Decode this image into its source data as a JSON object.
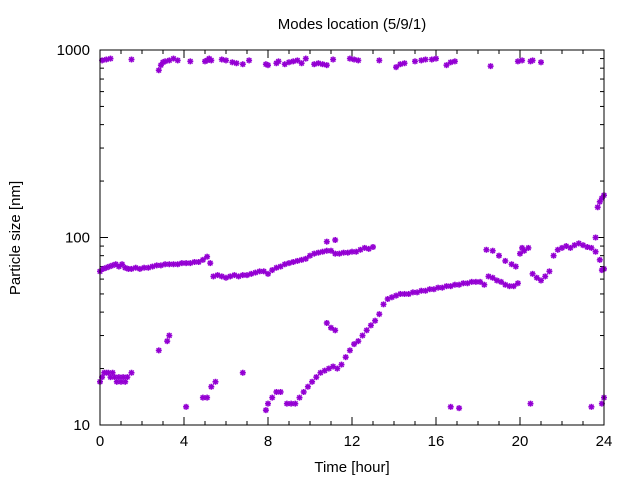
{
  "chart_data": {
    "type": "scatter",
    "title": "Modes location (5/9/1)",
    "xlabel": "Time [hour]",
    "ylabel": "Particle size [nm]",
    "xlim": [
      0,
      24
    ],
    "ylim": [
      10,
      1000
    ],
    "yscale": "log",
    "grid": false,
    "legend": "none",
    "marker_color": "#9400d3",
    "marker": "asterisk",
    "x_ticks": [
      0,
      4,
      8,
      12,
      16,
      20,
      24
    ],
    "x_tick_labels": [
      "0",
      "4",
      "8",
      "12",
      "16",
      "20",
      "24"
    ],
    "y_ticks": [
      10,
      100,
      1000
    ],
    "y_tick_labels": [
      "10",
      "100",
      "1000"
    ],
    "series": [
      {
        "name": "",
        "points": [
          [
            0.1,
            880
          ],
          [
            0.3,
            890
          ],
          [
            0.5,
            900
          ],
          [
            1.5,
            890
          ],
          [
            2.8,
            780
          ],
          [
            2.9,
            830
          ],
          [
            3.0,
            860
          ],
          [
            3.1,
            870
          ],
          [
            3.3,
            880
          ],
          [
            3.5,
            900
          ],
          [
            3.7,
            880
          ],
          [
            4.3,
            870
          ],
          [
            5.0,
            870
          ],
          [
            5.1,
            880
          ],
          [
            5.2,
            900
          ],
          [
            5.3,
            880
          ],
          [
            5.8,
            890
          ],
          [
            6.0,
            880
          ],
          [
            6.3,
            860
          ],
          [
            6.5,
            850
          ],
          [
            6.8,
            840
          ],
          [
            7.1,
            880
          ],
          [
            7.9,
            840
          ],
          [
            8.0,
            830
          ],
          [
            8.4,
            850
          ],
          [
            8.5,
            870
          ],
          [
            8.8,
            840
          ],
          [
            9.0,
            860
          ],
          [
            9.2,
            870
          ],
          [
            9.4,
            880
          ],
          [
            9.6,
            850
          ],
          [
            9.8,
            900
          ],
          [
            10.2,
            840
          ],
          [
            10.4,
            850
          ],
          [
            10.6,
            840
          ],
          [
            10.8,
            830
          ],
          [
            11.1,
            890
          ],
          [
            11.9,
            900
          ],
          [
            12.1,
            890
          ],
          [
            12.3,
            880
          ],
          [
            13.3,
            880
          ],
          [
            14.1,
            810
          ],
          [
            14.3,
            840
          ],
          [
            14.5,
            850
          ],
          [
            15.0,
            870
          ],
          [
            15.3,
            880
          ],
          [
            15.5,
            890
          ],
          [
            15.8,
            890
          ],
          [
            16.0,
            900
          ],
          [
            16.5,
            830
          ],
          [
            16.7,
            860
          ],
          [
            16.9,
            870
          ],
          [
            18.6,
            820
          ],
          [
            19.9,
            870
          ],
          [
            20.1,
            880
          ],
          [
            20.5,
            870
          ],
          [
            20.6,
            880
          ],
          [
            21.0,
            860
          ],
          [
            0.0,
            66
          ],
          [
            0.15,
            68
          ],
          [
            0.3,
            69
          ],
          [
            0.45,
            70
          ],
          [
            0.6,
            71
          ],
          [
            0.75,
            72
          ],
          [
            0.9,
            70
          ],
          [
            1.05,
            72
          ],
          [
            1.2,
            69
          ],
          [
            1.35,
            68
          ],
          [
            1.5,
            68
          ],
          [
            1.7,
            69
          ],
          [
            1.9,
            68
          ],
          [
            2.1,
            69
          ],
          [
            2.3,
            69
          ],
          [
            2.5,
            70
          ],
          [
            2.7,
            71
          ],
          [
            2.9,
            71
          ],
          [
            3.1,
            72
          ],
          [
            3.3,
            72
          ],
          [
            3.5,
            72
          ],
          [
            3.7,
            72
          ],
          [
            3.9,
            73
          ],
          [
            4.1,
            73
          ],
          [
            4.3,
            73
          ],
          [
            4.5,
            74
          ],
          [
            4.7,
            74
          ],
          [
            4.9,
            76
          ],
          [
            5.1,
            79
          ],
          [
            5.25,
            73
          ],
          [
            5.4,
            62
          ],
          [
            5.6,
            63
          ],
          [
            5.8,
            62
          ],
          [
            6.0,
            61
          ],
          [
            6.2,
            62
          ],
          [
            6.4,
            63
          ],
          [
            6.6,
            62
          ],
          [
            6.8,
            63
          ],
          [
            7.0,
            63
          ],
          [
            7.2,
            64
          ],
          [
            7.4,
            65
          ],
          [
            7.6,
            66
          ],
          [
            7.8,
            66
          ],
          [
            8.0,
            64
          ],
          [
            8.2,
            67
          ],
          [
            8.4,
            69
          ],
          [
            8.6,
            70
          ],
          [
            8.8,
            72
          ],
          [
            9.0,
            73
          ],
          [
            9.2,
            74
          ],
          [
            9.4,
            75
          ],
          [
            9.6,
            76
          ],
          [
            9.8,
            77
          ],
          [
            10.0,
            80
          ],
          [
            10.2,
            82
          ],
          [
            10.4,
            83
          ],
          [
            10.6,
            84
          ],
          [
            10.8,
            85
          ],
          [
            11.0,
            85
          ],
          [
            11.2,
            82
          ],
          [
            11.4,
            82
          ],
          [
            11.6,
            83
          ],
          [
            11.8,
            83
          ],
          [
            12.0,
            84
          ],
          [
            12.2,
            84
          ],
          [
            12.4,
            86
          ],
          [
            12.6,
            88
          ],
          [
            12.8,
            87
          ],
          [
            13.0,
            89
          ],
          [
            11.2,
            97
          ],
          [
            10.8,
            95
          ],
          [
            18.4,
            86
          ],
          [
            18.7,
            85
          ],
          [
            19.0,
            80
          ],
          [
            19.3,
            75
          ],
          [
            19.6,
            72
          ],
          [
            19.8,
            70
          ],
          [
            20.0,
            82
          ],
          [
            20.1,
            88
          ],
          [
            20.2,
            85
          ],
          [
            20.4,
            88
          ],
          [
            20.6,
            64
          ],
          [
            20.8,
            61
          ],
          [
            21.0,
            59
          ],
          [
            21.2,
            62
          ],
          [
            21.4,
            66
          ],
          [
            21.6,
            80
          ],
          [
            21.8,
            86
          ],
          [
            22.0,
            88
          ],
          [
            22.2,
            90
          ],
          [
            22.4,
            88
          ],
          [
            22.6,
            91
          ],
          [
            22.8,
            93
          ],
          [
            23.0,
            91
          ],
          [
            23.2,
            89
          ],
          [
            23.4,
            88
          ],
          [
            23.6,
            84
          ],
          [
            23.8,
            76
          ],
          [
            23.9,
            67
          ],
          [
            24.0,
            68
          ],
          [
            23.6,
            100
          ],
          [
            23.7,
            145
          ],
          [
            23.8,
            155
          ],
          [
            23.9,
            162
          ],
          [
            24.0,
            168
          ],
          [
            0.0,
            17
          ],
          [
            0.1,
            18
          ],
          [
            0.2,
            19
          ],
          [
            0.3,
            19
          ],
          [
            0.4,
            19
          ],
          [
            0.5,
            18
          ],
          [
            0.6,
            19
          ],
          [
            0.7,
            18
          ],
          [
            0.8,
            17
          ],
          [
            0.9,
            18
          ],
          [
            1.0,
            17
          ],
          [
            1.1,
            18
          ],
          [
            1.2,
            17
          ],
          [
            1.3,
            18
          ],
          [
            1.5,
            19
          ],
          [
            2.8,
            25
          ],
          [
            3.2,
            28
          ],
          [
            3.3,
            30
          ],
          [
            4.9,
            14
          ],
          [
            5.1,
            14
          ],
          [
            5.3,
            16
          ],
          [
            5.5,
            17
          ],
          [
            6.8,
            19
          ],
          [
            7.9,
            12
          ],
          [
            8.0,
            13
          ],
          [
            8.2,
            14
          ],
          [
            8.4,
            15
          ],
          [
            8.6,
            15
          ],
          [
            4.1,
            12.5
          ],
          [
            8.9,
            13
          ],
          [
            9.1,
            13
          ],
          [
            9.3,
            13
          ],
          [
            9.5,
            14
          ],
          [
            9.7,
            15
          ],
          [
            9.9,
            16
          ],
          [
            10.1,
            17
          ],
          [
            10.3,
            18
          ],
          [
            10.5,
            19
          ],
          [
            10.7,
            19.5
          ],
          [
            10.9,
            20
          ],
          [
            11.1,
            20.5
          ],
          [
            11.3,
            20
          ],
          [
            11.5,
            21
          ],
          [
            11.7,
            23
          ],
          [
            11.9,
            25
          ],
          [
            12.1,
            27
          ],
          [
            12.3,
            28
          ],
          [
            12.5,
            30
          ],
          [
            12.7,
            32
          ],
          [
            12.9,
            34
          ],
          [
            13.1,
            36
          ],
          [
            13.3,
            39
          ],
          [
            13.5,
            44
          ],
          [
            13.7,
            47
          ],
          [
            13.9,
            48
          ],
          [
            14.1,
            49
          ],
          [
            14.3,
            50
          ],
          [
            14.5,
            50
          ],
          [
            14.7,
            50
          ],
          [
            14.9,
            51
          ],
          [
            15.1,
            51
          ],
          [
            15.3,
            52
          ],
          [
            15.5,
            52
          ],
          [
            15.7,
            53
          ],
          [
            15.9,
            53
          ],
          [
            16.1,
            54
          ],
          [
            16.3,
            54
          ],
          [
            16.5,
            55
          ],
          [
            16.7,
            55
          ],
          [
            16.9,
            56
          ],
          [
            17.1,
            56
          ],
          [
            17.3,
            57
          ],
          [
            17.5,
            57
          ],
          [
            17.7,
            58
          ],
          [
            17.9,
            58
          ],
          [
            18.1,
            58
          ],
          [
            18.3,
            56
          ],
          [
            18.5,
            62
          ],
          [
            18.7,
            61
          ],
          [
            18.9,
            59
          ],
          [
            19.1,
            58
          ],
          [
            19.3,
            56
          ],
          [
            19.5,
            55
          ],
          [
            19.7,
            55
          ],
          [
            19.9,
            57
          ],
          [
            10.8,
            35
          ],
          [
            11.0,
            33
          ],
          [
            11.2,
            32
          ],
          [
            16.7,
            12.5
          ],
          [
            17.1,
            12.3
          ],
          [
            20.5,
            13
          ],
          [
            23.4,
            12.5
          ],
          [
            23.9,
            13
          ],
          [
            24.0,
            14
          ]
        ]
      }
    ]
  }
}
